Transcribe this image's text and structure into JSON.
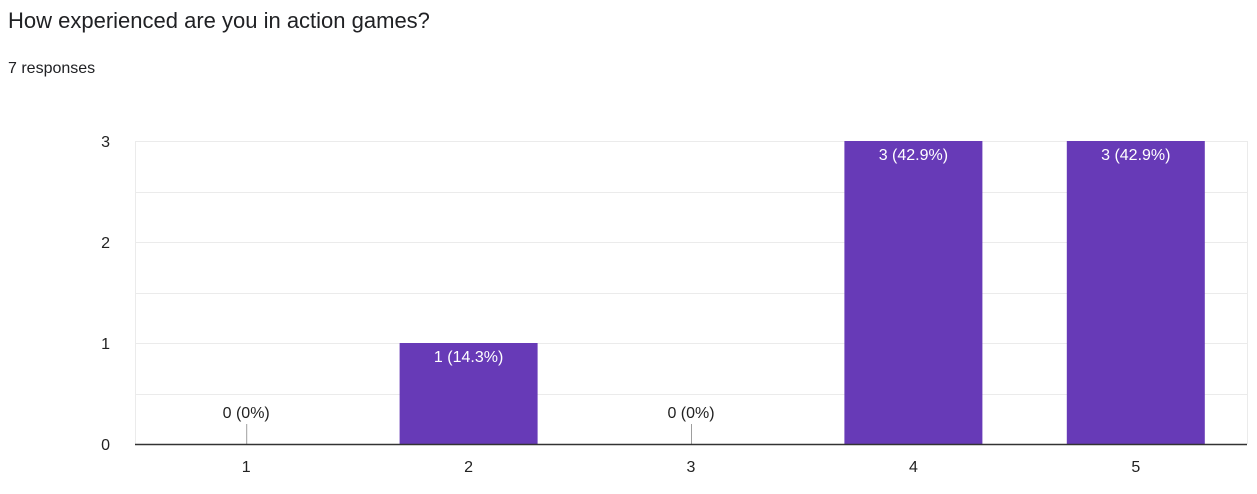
{
  "question": {
    "title": "How experienced are you in action games?",
    "responses": "7 responses"
  },
  "colors": {
    "bar": "#673ab7",
    "grid": "#ebebeb",
    "axis": "#333333"
  },
  "chart_data": {
    "type": "bar",
    "title": "How experienced are you in action games?",
    "categories": [
      "1",
      "2",
      "3",
      "4",
      "5"
    ],
    "values": [
      0,
      1,
      0,
      3,
      3
    ],
    "data_labels": [
      "0 (0%)",
      "1 (14.3%)",
      "0 (0%)",
      "3 (42.9%)",
      "3 (42.9%)"
    ],
    "yticks": [
      0,
      1,
      2,
      3
    ],
    "ylim": [
      0,
      3
    ],
    "xlabel": "",
    "ylabel": "",
    "grid": true,
    "legend": "none"
  }
}
